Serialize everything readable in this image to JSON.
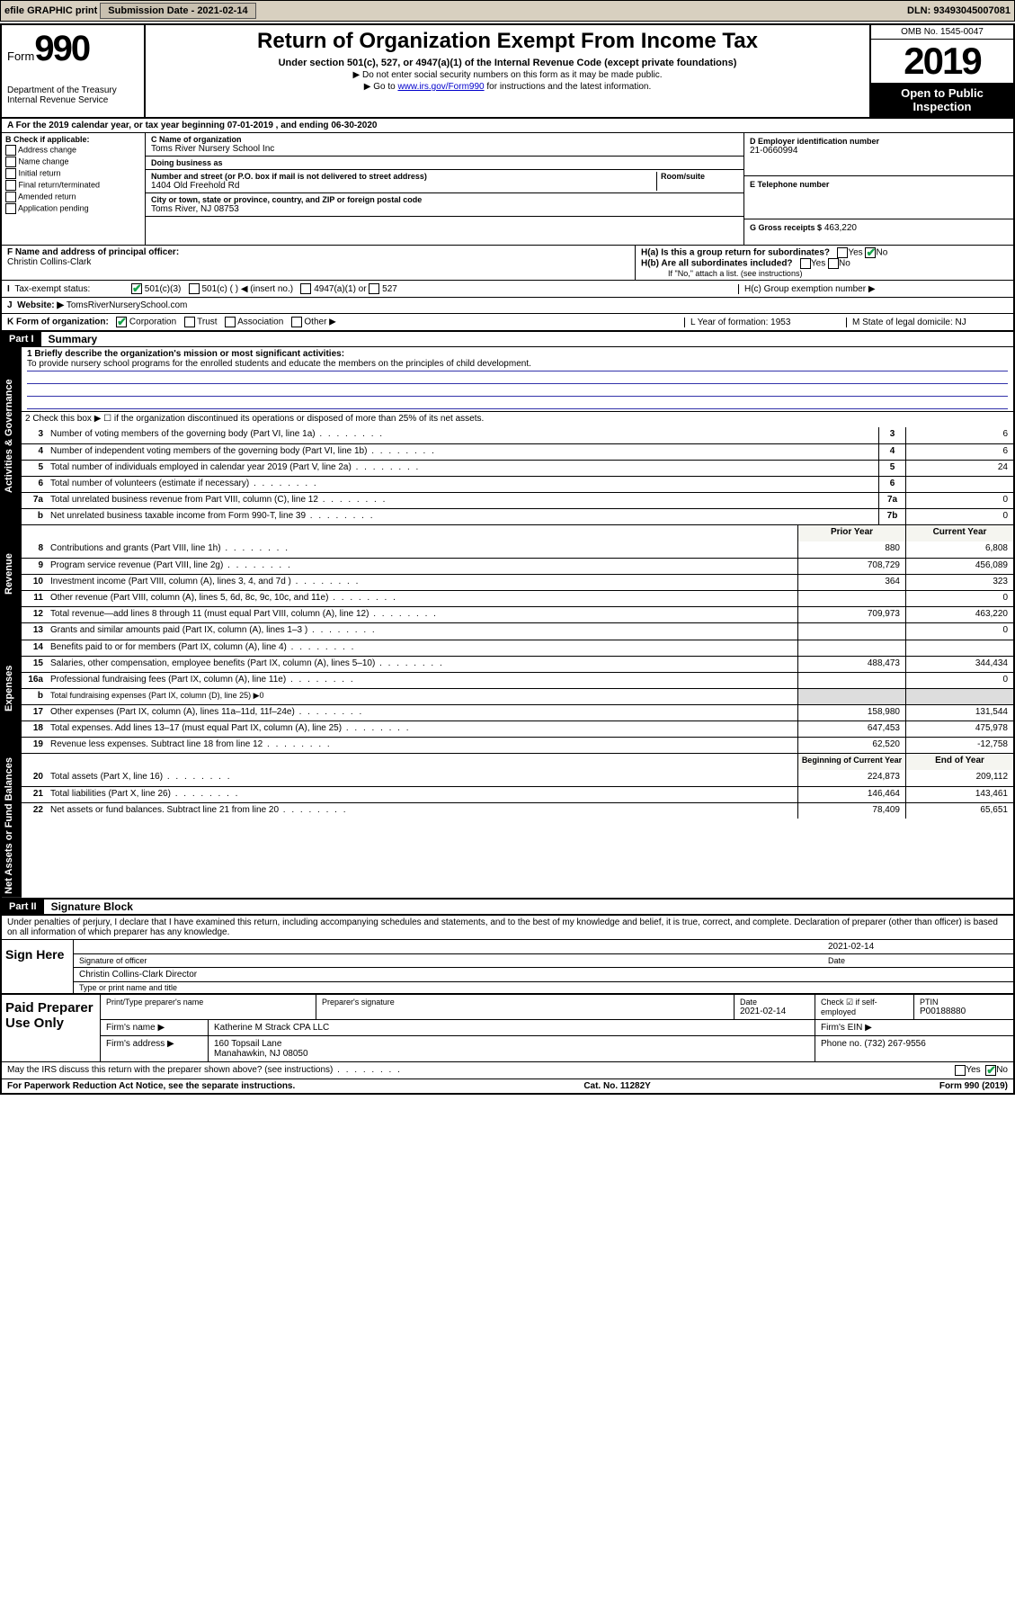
{
  "topbar": {
    "efile": "efile GRAPHIC print",
    "sub_label": "Submission Date - 2021-02-14",
    "dln": "DLN: 93493045007081"
  },
  "header": {
    "form_label": "Form",
    "form_num": "990",
    "dept": "Department of the Treasury\nInternal Revenue Service",
    "title": "Return of Organization Exempt From Income Tax",
    "subtitle": "Under section 501(c), 527, or 4947(a)(1) of the Internal Revenue Code (except private foundations)",
    "line1": "▶ Do not enter social security numbers on this form as it may be made public.",
    "line2_pre": "▶ Go to ",
    "line2_link": "www.irs.gov/Form990",
    "line2_post": " for instructions and the latest information.",
    "omb": "OMB No. 1545-0047",
    "year": "2019",
    "inspect": "Open to Public Inspection"
  },
  "rowA": "A For the 2019 calendar year, or tax year beginning 07-01-2019   , and ending 06-30-2020",
  "boxB": {
    "title": "B Check if applicable:",
    "items": [
      "Address change",
      "Name change",
      "Initial return",
      "Final return/terminated",
      "Amended return",
      "Application pending"
    ]
  },
  "boxC": {
    "name_lbl": "C Name of organization",
    "name": "Toms River Nursery School Inc",
    "dba_lbl": "Doing business as",
    "dba": "",
    "addr_lbl": "Number and street (or P.O. box if mail is not delivered to street address)",
    "room_lbl": "Room/suite",
    "addr": "1404 Old Freehold Rd",
    "city_lbl": "City or town, state or province, country, and ZIP or foreign postal code",
    "city": "Toms River, NJ  08753"
  },
  "boxD": {
    "lbl": "D Employer identification number",
    "val": "21-0660994"
  },
  "boxE": {
    "lbl": "E Telephone number",
    "val": ""
  },
  "boxG": {
    "lbl": "G Gross receipts $",
    "val": "463,220"
  },
  "boxF": {
    "lbl": "F  Name and address of principal officer:",
    "val": "Christin Collins-Clark"
  },
  "boxH": {
    "a": "H(a)  Is this a group return for subordinates?",
    "b": "H(b)  Are all subordinates included?",
    "b_note": "If \"No,\" attach a list. (see instructions)",
    "c": "H(c)  Group exemption number ▶",
    "yes": "Yes",
    "no": "No"
  },
  "rowI": {
    "lbl": "Tax-exempt status:",
    "opt1": "501(c)(3)",
    "opt2": "501(c) (  ) ◀ (insert no.)",
    "opt3": "4947(a)(1) or",
    "opt4": "527"
  },
  "rowJ": {
    "lbl": "J",
    "web_lbl": "Website: ▶",
    "web": "TomsRiverNurserySchool.com"
  },
  "rowK": {
    "lbl": "K Form of organization:",
    "opts": [
      "Corporation",
      "Trust",
      "Association",
      "Other ▶"
    ],
    "L": "L Year of formation: 1953",
    "M": "M State of legal domicile: NJ"
  },
  "part1": {
    "hdr": "Part I",
    "title": "Summary"
  },
  "vtabs": {
    "gov": "Activities & Governance",
    "rev": "Revenue",
    "exp": "Expenses",
    "net": "Net Assets or Fund Balances"
  },
  "summary": {
    "q1_lbl": "1  Briefly describe the organization's mission or most significant activities:",
    "q1": "To provide nursery school programs for the enrolled students and educate the members on the principles of child development.",
    "q2": "2   Check this box ▶ ☐  if the organization discontinued its operations or disposed of more than 25% of its net assets.",
    "lines_gov": [
      {
        "n": "3",
        "d": "Number of voting members of the governing body (Part VI, line 1a)",
        "b": "3",
        "v": "6"
      },
      {
        "n": "4",
        "d": "Number of independent voting members of the governing body (Part VI, line 1b)",
        "b": "4",
        "v": "6"
      },
      {
        "n": "5",
        "d": "Total number of individuals employed in calendar year 2019 (Part V, line 2a)",
        "b": "5",
        "v": "24"
      },
      {
        "n": "6",
        "d": "Total number of volunteers (estimate if necessary)",
        "b": "6",
        "v": ""
      },
      {
        "n": "7a",
        "d": "Total unrelated business revenue from Part VIII, column (C), line 12",
        "b": "7a",
        "v": "0"
      },
      {
        "n": "b",
        "d": "Net unrelated business taxable income from Form 990-T, line 39",
        "b": "7b",
        "v": "0"
      }
    ],
    "col_hdr_prior": "Prior Year",
    "col_hdr_curr": "Current Year",
    "lines_rev": [
      {
        "n": "8",
        "d": "Contributions and grants (Part VIII, line 1h)",
        "p": "880",
        "c": "6,808"
      },
      {
        "n": "9",
        "d": "Program service revenue (Part VIII, line 2g)",
        "p": "708,729",
        "c": "456,089"
      },
      {
        "n": "10",
        "d": "Investment income (Part VIII, column (A), lines 3, 4, and 7d )",
        "p": "364",
        "c": "323"
      },
      {
        "n": "11",
        "d": "Other revenue (Part VIII, column (A), lines 5, 6d, 8c, 9c, 10c, and 11e)",
        "p": "",
        "c": "0"
      },
      {
        "n": "12",
        "d": "Total revenue—add lines 8 through 11 (must equal Part VIII, column (A), line 12)",
        "p": "709,973",
        "c": "463,220"
      }
    ],
    "lines_exp": [
      {
        "n": "13",
        "d": "Grants and similar amounts paid (Part IX, column (A), lines 1–3 )",
        "p": "",
        "c": "0"
      },
      {
        "n": "14",
        "d": "Benefits paid to or for members (Part IX, column (A), line 4)",
        "p": "",
        "c": ""
      },
      {
        "n": "15",
        "d": "Salaries, other compensation, employee benefits (Part IX, column (A), lines 5–10)",
        "p": "488,473",
        "c": "344,434"
      },
      {
        "n": "16a",
        "d": "Professional fundraising fees (Part IX, column (A), line 11e)",
        "p": "",
        "c": "0"
      },
      {
        "n": "b",
        "d": "Total fundraising expenses (Part IX, column (D), line 25) ▶0",
        "p": "__HDR__",
        "c": "__HDR__"
      },
      {
        "n": "17",
        "d": "Other expenses (Part IX, column (A), lines 11a–11d, 11f–24e)",
        "p": "158,980",
        "c": "131,544"
      },
      {
        "n": "18",
        "d": "Total expenses. Add lines 13–17 (must equal Part IX, column (A), line 25)",
        "p": "647,453",
        "c": "475,978"
      },
      {
        "n": "19",
        "d": "Revenue less expenses. Subtract line 18 from line 12",
        "p": "62,520",
        "c": "-12,758"
      }
    ],
    "col_hdr_begin": "Beginning of Current Year",
    "col_hdr_end": "End of Year",
    "lines_net": [
      {
        "n": "20",
        "d": "Total assets (Part X, line 16)",
        "p": "224,873",
        "c": "209,112"
      },
      {
        "n": "21",
        "d": "Total liabilities (Part X, line 26)",
        "p": "146,464",
        "c": "143,461"
      },
      {
        "n": "22",
        "d": "Net assets or fund balances. Subtract line 21 from line 20",
        "p": "78,409",
        "c": "65,651"
      }
    ]
  },
  "part2": {
    "hdr": "Part II",
    "title": "Signature Block"
  },
  "penalties": "Under penalties of perjury, I declare that I have examined this return, including accompanying schedules and statements, and to the best of my knowledge and belief, it is true, correct, and complete. Declaration of preparer (other than officer) is based on all information of which preparer has any knowledge.",
  "sign": {
    "here": "Sign Here",
    "date": "2021-02-14",
    "sig_lbl": "Signature of officer",
    "date_lbl": "Date",
    "name": "Christin Collins-Clark  Director",
    "name_lbl": "Type or print name and title"
  },
  "paid": {
    "title": "Paid Preparer Use Only",
    "h1": "Print/Type preparer's name",
    "h2": "Preparer's signature",
    "h3": "Date",
    "h3v": "2021-02-14",
    "h4": "Check ☑ if self-employed",
    "h5": "PTIN",
    "h5v": "P00188880",
    "firm_lbl": "Firm's name    ▶",
    "firm": "Katherine M Strack CPA LLC",
    "ein_lbl": "Firm's EIN ▶",
    "ein": "",
    "addr_lbl": "Firm's address ▶",
    "addr1": "160 Topsail Lane",
    "addr2": "Manahawkin, NJ  08050",
    "phone_lbl": "Phone no.",
    "phone": "(732) 267-9556"
  },
  "discuss": "May the IRS discuss this return with the preparer shown above? (see instructions)",
  "footer": {
    "pra": "For Paperwork Reduction Act Notice, see the separate instructions.",
    "cat": "Cat. No. 11282Y",
    "form": "Form 990 (2019)"
  },
  "colors": {
    "green_check": "#16a34a",
    "link": "#0000cc",
    "topbar_bg": "#d8d0c0"
  }
}
